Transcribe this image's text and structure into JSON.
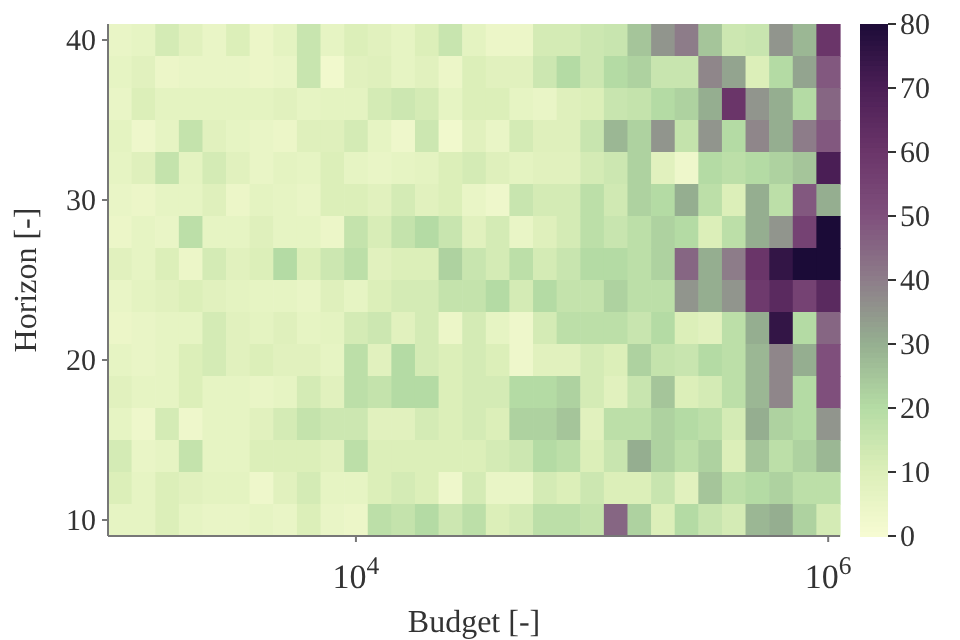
{
  "chart_data": {
    "type": "heatmap",
    "xlabel": "Budget [-]",
    "ylabel": "Horizon [-]",
    "clim": [
      0,
      80
    ],
    "cticks": [
      0,
      10,
      20,
      30,
      40,
      50,
      60,
      70,
      80
    ],
    "categories": [
      null,
      null,
      null,
      null,
      null,
      null,
      null,
      null,
      null,
      null,
      "10$^{4}$",
      null,
      null,
      null,
      null,
      null,
      null,
      null,
      null,
      null,
      null,
      null,
      null,
      null,
      null,
      null,
      null,
      null,
      null,
      null,
      "10$^{6}$"
    ],
    "y_categories": [
      "40",
      null,
      null,
      null,
      null,
      "30",
      null,
      null,
      null,
      null,
      "20",
      null,
      null,
      null,
      null,
      "10"
    ],
    "cells": [
      [
        5,
        6,
        12,
        8,
        5,
        10,
        4,
        7,
        15,
        6,
        10,
        8,
        6,
        10,
        15,
        7,
        4,
        4,
        12,
        12,
        14,
        15,
        25,
        35,
        40,
        25,
        14,
        15,
        35,
        28,
        60
      ],
      [
        6,
        8,
        4,
        5,
        5,
        5,
        4,
        5,
        15,
        2,
        8,
        9,
        6,
        8,
        4,
        10,
        8,
        8,
        14,
        20,
        14,
        20,
        22,
        15,
        15,
        38,
        32,
        10,
        20,
        32,
        48
      ],
      [
        5,
        10,
        7,
        7,
        7,
        7,
        7,
        8,
        6,
        7,
        7,
        12,
        14,
        12,
        6,
        10,
        10,
        6,
        5,
        9,
        10,
        15,
        16,
        20,
        22,
        30,
        60,
        35,
        30,
        20,
        45
      ],
      [
        7,
        3,
        6,
        16,
        8,
        6,
        5,
        4,
        9,
        9,
        12,
        6,
        3,
        14,
        2,
        8,
        5,
        12,
        9,
        9,
        15,
        28,
        22,
        35,
        16,
        35,
        20,
        38,
        30,
        40,
        48
      ],
      [
        6,
        9,
        16,
        7,
        12,
        8,
        5,
        7,
        6,
        10,
        6,
        5,
        6,
        7,
        10,
        12,
        9,
        7,
        8,
        8,
        12,
        14,
        22,
        8,
        3,
        20,
        18,
        20,
        22,
        25,
        70
      ],
      [
        5,
        4,
        6,
        6,
        9,
        4,
        7,
        6,
        5,
        10,
        10,
        8,
        12,
        8,
        10,
        5,
        3,
        15,
        12,
        12,
        18,
        13,
        22,
        20,
        30,
        18,
        10,
        30,
        18,
        48,
        30
      ],
      [
        4,
        6,
        5,
        18,
        6,
        6,
        9,
        6,
        6,
        4,
        16,
        11,
        16,
        20,
        15,
        8,
        12,
        5,
        9,
        12,
        18,
        15,
        18,
        22,
        20,
        10,
        18,
        30,
        35,
        55,
        80
      ],
      [
        8,
        6,
        10,
        4,
        12,
        8,
        10,
        20,
        10,
        14,
        18,
        8,
        10,
        10,
        22,
        15,
        12,
        18,
        12,
        15,
        20,
        20,
        18,
        22,
        45,
        30,
        40,
        60,
        75,
        80,
        80
      ],
      [
        5,
        7,
        8,
        10,
        8,
        7,
        6,
        6,
        5,
        9,
        6,
        10,
        12,
        12,
        16,
        16,
        20,
        12,
        20,
        16,
        16,
        22,
        18,
        18,
        35,
        30,
        35,
        58,
        65,
        55,
        65
      ],
      [
        4,
        5,
        6,
        6,
        12,
        8,
        7,
        9,
        6,
        7,
        12,
        14,
        8,
        12,
        4,
        12,
        6,
        3,
        12,
        18,
        18,
        18,
        15,
        20,
        10,
        8,
        18,
        30,
        75,
        20,
        45
      ],
      [
        6,
        5,
        6,
        10,
        12,
        8,
        10,
        8,
        8,
        6,
        18,
        8,
        20,
        12,
        10,
        12,
        10,
        3,
        8,
        8,
        12,
        10,
        22,
        16,
        15,
        20,
        18,
        28,
        38,
        30,
        50
      ],
      [
        8,
        6,
        6,
        10,
        6,
        6,
        5,
        6,
        12,
        8,
        18,
        16,
        20,
        20,
        10,
        12,
        12,
        20,
        20,
        22,
        12,
        8,
        15,
        25,
        10,
        12,
        18,
        28,
        38,
        20,
        50
      ],
      [
        6,
        3,
        12,
        3,
        6,
        6,
        8,
        12,
        16,
        14,
        14,
        8,
        8,
        12,
        10,
        12,
        10,
        22,
        22,
        25,
        8,
        18,
        18,
        22,
        20,
        18,
        12,
        30,
        22,
        20,
        35
      ],
      [
        12,
        5,
        6,
        16,
        6,
        6,
        10,
        10,
        10,
        8,
        18,
        10,
        10,
        10,
        10,
        10,
        12,
        14,
        20,
        18,
        10,
        15,
        30,
        22,
        18,
        22,
        10,
        25,
        18,
        22,
        28
      ],
      [
        10,
        6,
        10,
        8,
        7,
        7,
        3,
        8,
        12,
        6,
        6,
        10,
        12,
        10,
        3,
        12,
        5,
        5,
        12,
        10,
        14,
        10,
        10,
        15,
        8,
        25,
        18,
        20,
        22,
        18,
        18
      ],
      [
        6,
        6,
        10,
        6,
        5,
        5,
        6,
        5,
        10,
        5,
        4,
        18,
        16,
        20,
        14,
        18,
        10,
        12,
        18,
        18,
        16,
        45,
        22,
        10,
        20,
        15,
        12,
        28,
        30,
        22,
        12
      ]
    ]
  }
}
